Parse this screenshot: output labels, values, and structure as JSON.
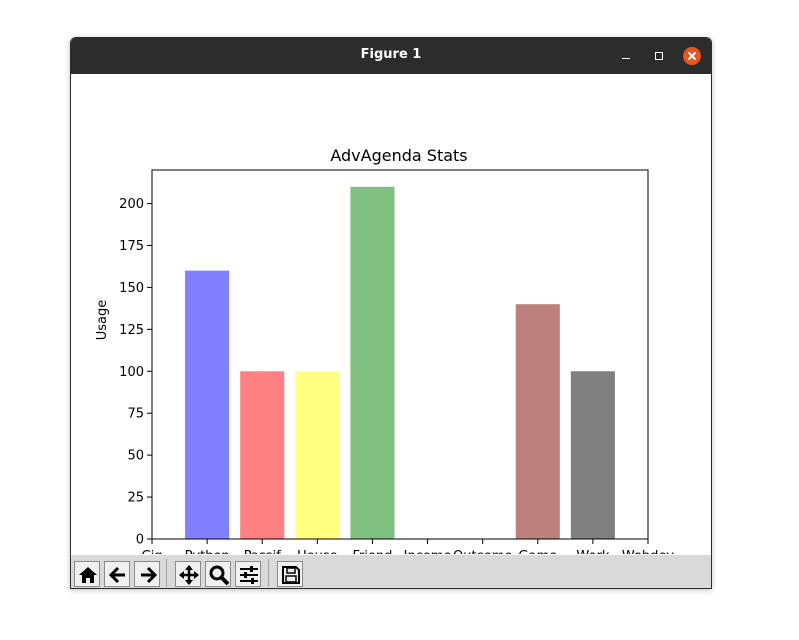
{
  "window": {
    "title": "Figure 1"
  },
  "toolbar": {
    "buttons": [
      {
        "name": "home-button",
        "icon": "home-icon"
      },
      {
        "name": "back-button",
        "icon": "arrow-left-icon"
      },
      {
        "name": "forward-button",
        "icon": "arrow-right-icon"
      },
      {
        "name": "pan-button",
        "icon": "move-icon"
      },
      {
        "name": "zoom-button",
        "icon": "magnifier-icon"
      },
      {
        "name": "configure-subplots-button",
        "icon": "sliders-icon"
      },
      {
        "name": "save-button",
        "icon": "floppy-disk-icon"
      }
    ]
  },
  "chart_data": {
    "type": "bar",
    "title": "AdvAgenda Stats",
    "xlabel": "",
    "ylabel": "Usage",
    "x_ticks": [
      "Cig",
      "Python",
      "Passif",
      "House",
      "Friend",
      "Income",
      "Outcome",
      "Game",
      "Work",
      "Webdev"
    ],
    "y_ticks": [
      0,
      25,
      50,
      75,
      100,
      125,
      150,
      175,
      200
    ],
    "ylim": [
      0,
      220
    ],
    "xlim": [
      0,
      9
    ],
    "grid": false,
    "bars": [
      {
        "label": "Python",
        "x": 1,
        "value": 160,
        "color": "#8080ff"
      },
      {
        "label": "Passif",
        "x": 2,
        "value": 100,
        "color": "#ff8080"
      },
      {
        "label": "House",
        "x": 3,
        "value": 100,
        "color": "#ffff80"
      },
      {
        "label": "Friend",
        "x": 4,
        "value": 210,
        "color": "#80c080"
      },
      {
        "label": "Game",
        "x": 7,
        "value": 140,
        "color": "#bf8080"
      },
      {
        "label": "Work",
        "x": 8,
        "value": 100,
        "color": "#808080"
      }
    ]
  }
}
